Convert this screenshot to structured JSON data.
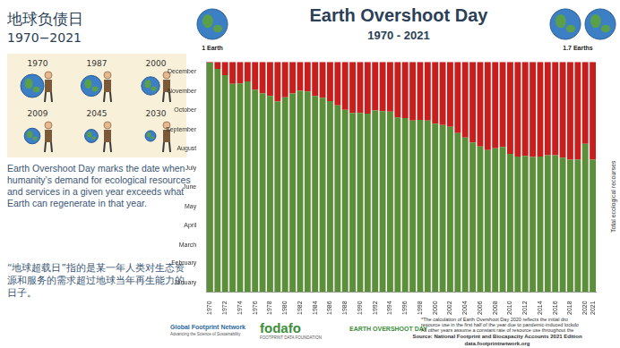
{
  "header": {
    "title": "地球负债日",
    "years": "1970−2021"
  },
  "illustration": {
    "labels": [
      "1970",
      "1987",
      "2000",
      "2009",
      "2045",
      "2030"
    ]
  },
  "description": {
    "en": "Earth Overshoot Day marks the date when humanity’s demand for ecological resources and services in a given year exceeds what Earth can regenerate in that year.",
    "zh": "“地球超载日”指的是某一年人类对生态资源和服务的需求超过地球当年再生能力的日子。"
  },
  "earths": {
    "left": "1 Earth",
    "right": "1.7 Earths"
  },
  "chart_data": {
    "type": "bar",
    "title": "Earth Overshoot Day",
    "subtitle": "1970 - 2021",
    "categories": [
      "1970",
      null,
      "1972",
      null,
      "1974",
      null,
      "1976",
      null,
      "1978",
      null,
      "1980",
      null,
      "1982",
      null,
      "1984",
      null,
      "1986",
      null,
      "1988",
      null,
      "1990",
      null,
      "1992",
      null,
      "1994",
      null,
      "1996",
      null,
      "1998",
      null,
      "2000",
      null,
      "2002",
      null,
      "2004",
      null,
      "2006",
      null,
      "2008",
      null,
      "2010",
      null,
      "2012",
      null,
      "2014",
      null,
      "2016",
      null,
      "2018",
      null,
      "2020",
      "2021"
    ],
    "series": [
      {
        "color": "#5b8f3a",
        "values": [
          364,
          354,
          344,
          330,
          331,
          334,
          321,
          315,
          311,
          302,
          309,
          315,
          319,
          318,
          311,
          308,
          303,
          296,
          289,
          284,
          284,
          283,
          288,
          287,
          286,
          277,
          276,
          272,
          273,
          272,
          267,
          265,
          262,
          252,
          245,
          237,
          231,
          225,
          228,
          230,
          219,
          215,
          216,
          214,
          215,
          217,
          217,
          213,
          210,
          210,
          235,
          210
        ]
      },
      {
        "color": "#c81e1e",
        "values": [
          1,
          11,
          21,
          35,
          34,
          31,
          44,
          50,
          54,
          63,
          56,
          50,
          46,
          47,
          54,
          57,
          62,
          69,
          76,
          81,
          81,
          82,
          77,
          78,
          79,
          88,
          89,
          93,
          92,
          93,
          98,
          100,
          103,
          113,
          120,
          128,
          134,
          140,
          137,
          135,
          146,
          150,
          149,
          151,
          150,
          148,
          148,
          152,
          155,
          155,
          130,
          155
        ]
      }
    ],
    "stacked": true,
    "ylim": [
      0,
      365
    ],
    "yticks": [
      {
        "value": 15,
        "label": "January"
      },
      {
        "value": 46,
        "label": "February"
      },
      {
        "value": 74,
        "label": "March"
      },
      {
        "value": 105,
        "label": "April"
      },
      {
        "value": 135,
        "label": "May"
      },
      {
        "value": 166,
        "label": "June"
      },
      {
        "value": 196,
        "label": "July"
      },
      {
        "value": 227,
        "label": "August"
      },
      {
        "value": 258,
        "label": "September"
      },
      {
        "value": 288,
        "label": "October"
      },
      {
        "value": 319,
        "label": "November"
      },
      {
        "value": 349,
        "label": "December"
      }
    ],
    "y_label": "Total ecological recourses",
    "grid": false
  },
  "footer": {
    "logos": {
      "gfn": "Global Footprint Network",
      "gfn_tagline": "Advancing the Science of Sustainability",
      "fodafo": "fodafo",
      "fodafo_tagline": "FOOTPRINT DATA FOUNDATION",
      "eod": "EARTH OVERSHOOT DAY"
    },
    "note": [
      "*The calculation of Earth Overshoot Day 2020 reflects the initial dro",
      "resource use in the first half of the year due to pandemic-induced lockdo",
      "All other years assume a constant rate of resource use throughout the"
    ],
    "source": "Source: National Footprint and Biocapacity Accounts 2021 Edition",
    "url": "data.footprintnetwork.org"
  }
}
